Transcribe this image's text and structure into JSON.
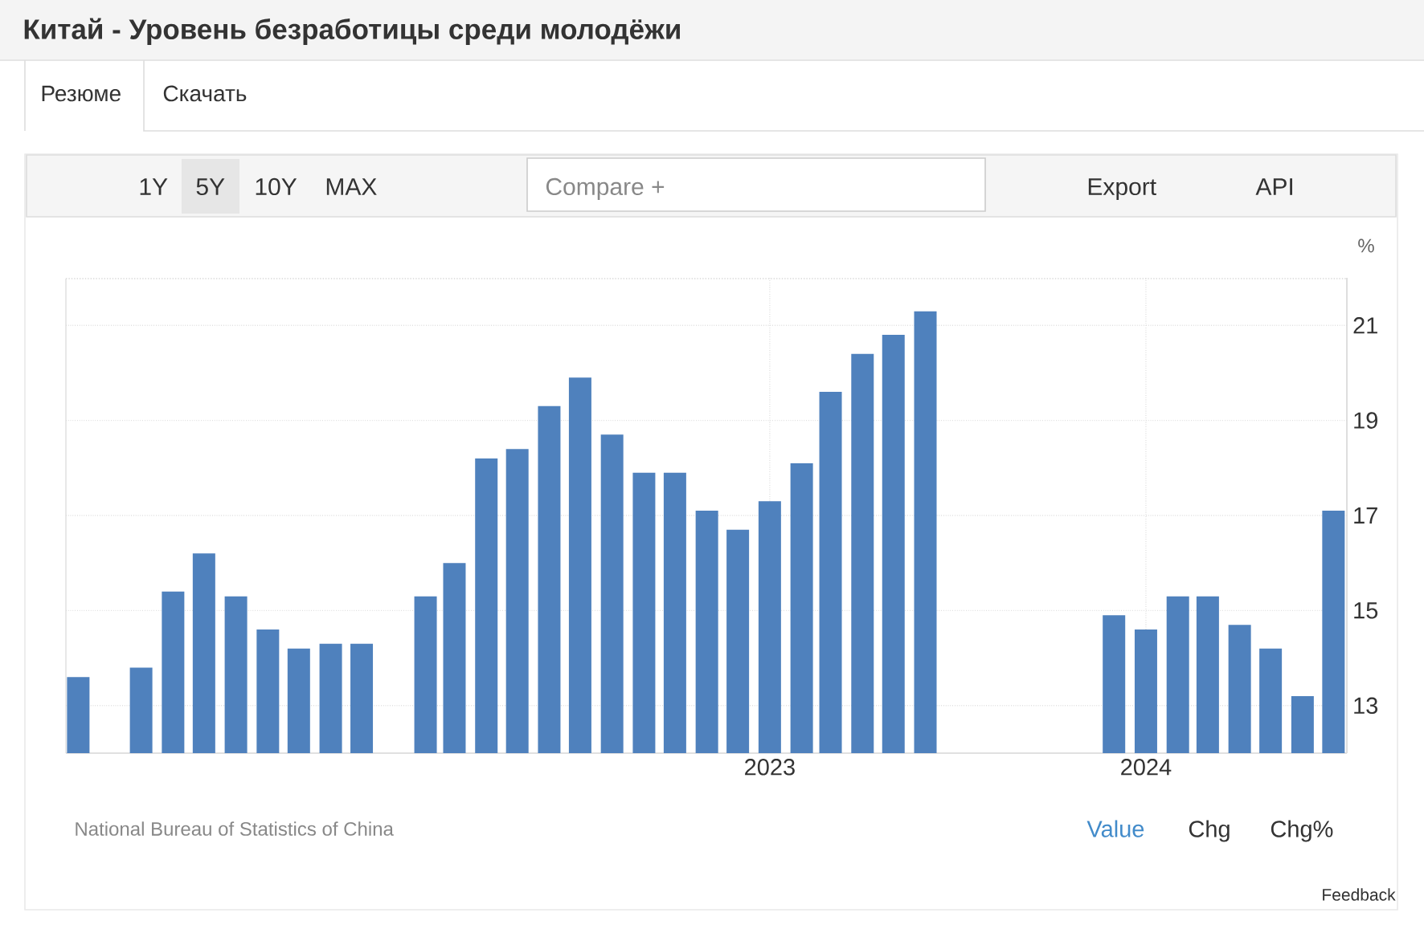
{
  "chart_data": {
    "type": "bar",
    "title": "Китай - Уровень безработицы среди молодёжи",
    "ylabel": "%",
    "x": [
      "2021-03",
      "2021-05",
      "2021-06",
      "2021-07",
      "2021-08",
      "2021-09",
      "2021-10",
      "2021-11",
      "2021-12",
      "2022-02",
      "2022-03",
      "2022-04",
      "2022-05",
      "2022-06",
      "2022-07",
      "2022-08",
      "2022-09",
      "2022-10",
      "2022-11",
      "2022-12",
      "2023-01",
      "2023-02",
      "2023-03",
      "2023-04",
      "2023-05",
      "2023-06",
      "2023-12",
      "2024-01",
      "2024-02",
      "2024-03",
      "2024-04",
      "2024-05",
      "2024-06",
      "2024-07"
    ],
    "values": [
      13.6,
      13.8,
      15.4,
      16.2,
      15.3,
      14.6,
      14.2,
      14.3,
      14.3,
      15.3,
      16.0,
      18.2,
      18.4,
      19.3,
      19.9,
      18.7,
      17.9,
      17.9,
      17.1,
      16.7,
      17.3,
      18.1,
      19.6,
      20.4,
      20.8,
      21.3,
      14.9,
      14.6,
      15.3,
      15.3,
      14.7,
      14.2,
      13.2,
      17.1
    ],
    "color": "#4f81bd",
    "xlim": [
      "2021-02-17",
      "2024-07-14"
    ],
    "xticks": [
      "2023",
      "2024"
    ],
    "ylim": [
      12,
      22
    ],
    "yticks": [
      13,
      15,
      17,
      19,
      21
    ],
    "grid": true,
    "annotations": [
      "Резюме",
      "Скачать",
      "1Y",
      "5Y",
      "10Y",
      "MAX",
      "Compare +",
      "Export",
      "API",
      "National Bureau of Statistics of China",
      "Value",
      "Chg",
      "Chg%",
      "Feedback"
    ]
  }
}
